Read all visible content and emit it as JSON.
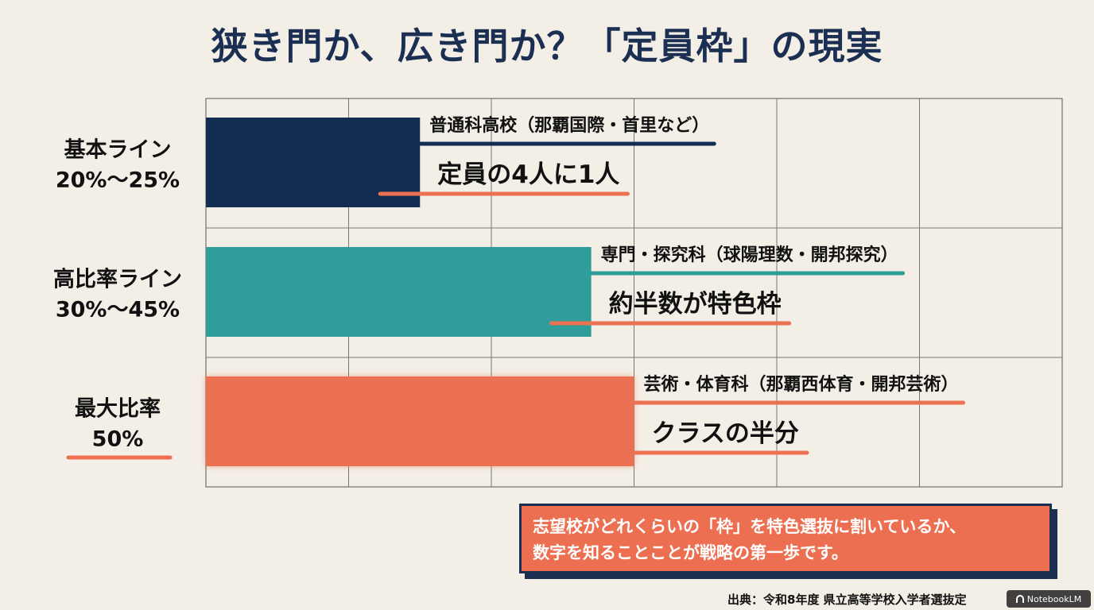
{
  "title": "狭き門か、広き門か？「定員枠」の現実",
  "chart_data": {
    "type": "bar",
    "orientation": "horizontal",
    "categories": [
      {
        "label_line1": "基本ライン",
        "label_line2": "20%〜25%",
        "school_type": "普通科高校（那覇国際・首里など）",
        "value_text": "定員の4人に1人"
      },
      {
        "label_line1": "高比率ライン",
        "label_line2": "30%〜45%",
        "school_type": "専門・探究科（球陽理数・開邦探究）",
        "value_text": "約半数が特色枠"
      },
      {
        "label_line1": "最大比率",
        "label_line2": "50%",
        "school_type": "芸術・体育科（那覇西体育・開邦芸術）",
        "value_text": "クラスの半分"
      }
    ],
    "values": [
      25,
      45,
      50
    ],
    "xlim": [
      0,
      100
    ],
    "grid": true,
    "colors": [
      "#132d52",
      "#2f9e9a",
      "#ec7152"
    ],
    "accent_underline": "#ec7152"
  },
  "note": {
    "line1": "志望校がどれくらいの「枠」を特色選抜に割いているか、",
    "line2": "数字を知ることことが戦略の第一歩です。"
  },
  "source": "出典：令和8年度 県立高等学校入学者選抜定",
  "badge": "NotebookLM"
}
